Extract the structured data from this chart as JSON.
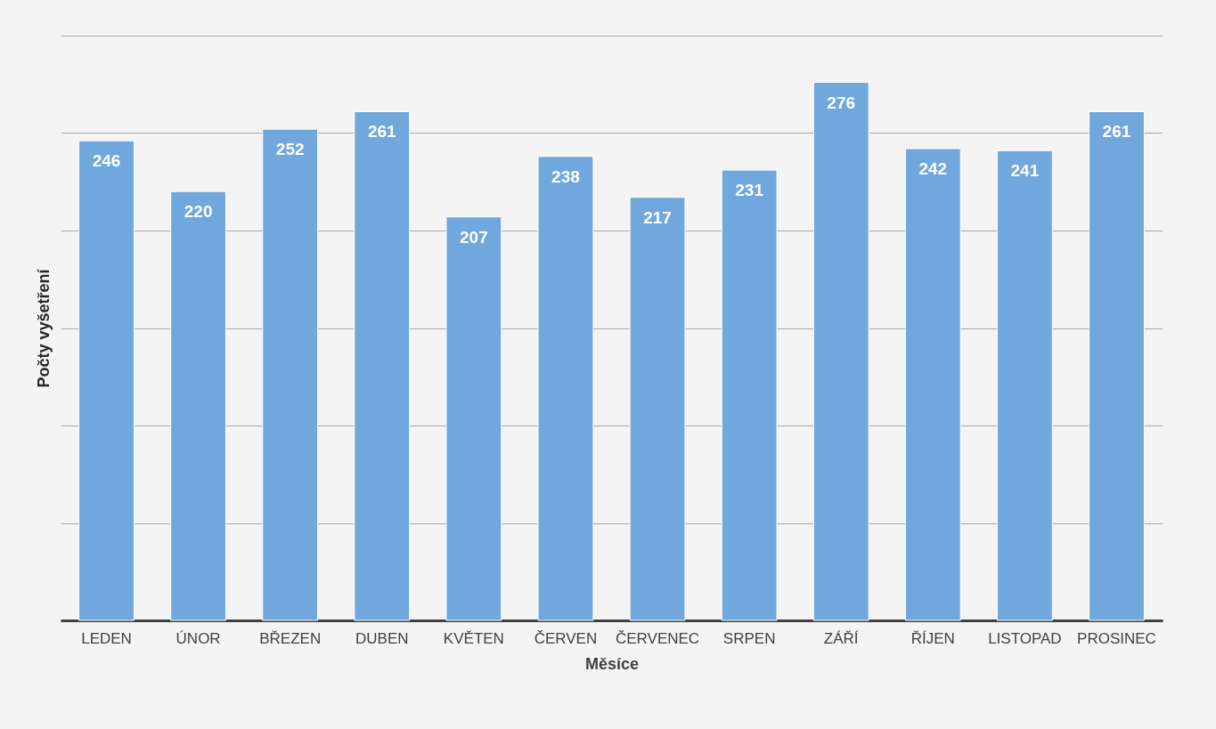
{
  "chart_data": {
    "type": "bar",
    "xlabel": "Měsíce",
    "ylabel": "Počty vyšetření",
    "categories": [
      "LEDEN",
      "ÚNOR",
      "BŘEZEN",
      "DUBEN",
      "KVĚTEN",
      "ČERVEN",
      "ČERVENEC",
      "SRPEN",
      "ZÁŘÍ",
      "ŘÍJEN",
      "LISTOPAD",
      "PROSINEC"
    ],
    "values": [
      246,
      220,
      252,
      261,
      207,
      238,
      217,
      231,
      276,
      242,
      241,
      261
    ],
    "color": "#70a7dc",
    "ylim": [
      0,
      300
    ],
    "yticks": [
      {
        "value": 0,
        "label": null
      },
      {
        "value": 50,
        "label": null
      },
      {
        "value": 100,
        "label": null
      },
      {
        "value": 150,
        "label": null
      },
      {
        "value": 200,
        "label": null
      },
      {
        "value": 250,
        "label": null
      },
      {
        "value": 300,
        "label": null
      }
    ],
    "grid": "y",
    "tick_labels": "x",
    "data_labels": true
  }
}
